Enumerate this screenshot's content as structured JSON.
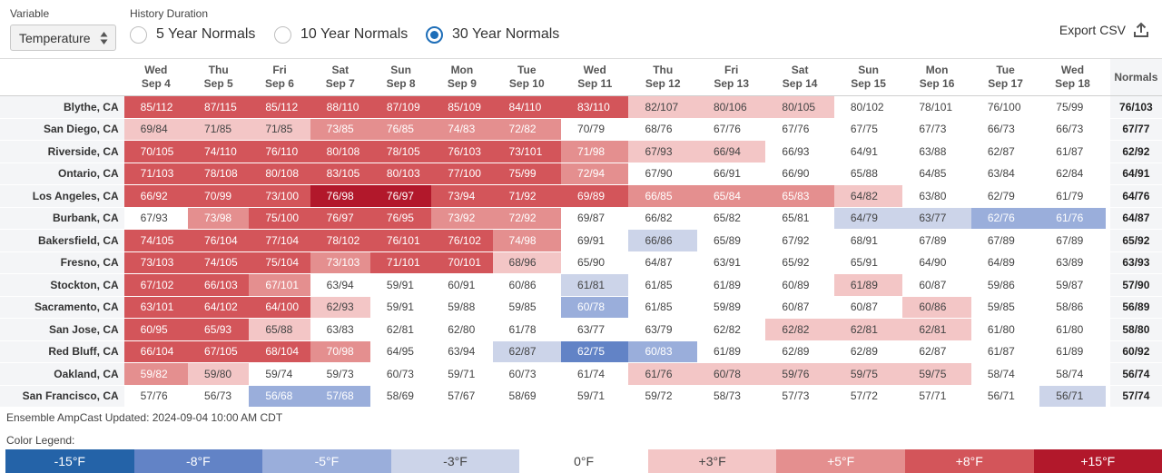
{
  "controls": {
    "variable_label": "Variable",
    "variable_value": "Temperature",
    "history_label": "History Duration",
    "options": [
      "5 Year Normals",
      "10 Year Normals",
      "30 Year Normals"
    ],
    "selected_option": "30 Year Normals",
    "export_label": "Export CSV"
  },
  "days": [
    {
      "dow": "Wed",
      "date": "Sep 4"
    },
    {
      "dow": "Thu",
      "date": "Sep 5"
    },
    {
      "dow": "Fri",
      "date": "Sep 6"
    },
    {
      "dow": "Sat",
      "date": "Sep 7"
    },
    {
      "dow": "Sun",
      "date": "Sep 8"
    },
    {
      "dow": "Mon",
      "date": "Sep 9"
    },
    {
      "dow": "Tue",
      "date": "Sep 10"
    },
    {
      "dow": "Wed",
      "date": "Sep 11"
    },
    {
      "dow": "Thu",
      "date": "Sep 12"
    },
    {
      "dow": "Fri",
      "date": "Sep 13"
    },
    {
      "dow": "Sat",
      "date": "Sep 14"
    },
    {
      "dow": "Sun",
      "date": "Sep 15"
    },
    {
      "dow": "Mon",
      "date": "Sep 16"
    },
    {
      "dow": "Tue",
      "date": "Sep 17"
    },
    {
      "dow": "Wed",
      "date": "Sep 18"
    }
  ],
  "normals_header": "Normals",
  "rows": [
    {
      "city": "Blythe, CA",
      "normals": "76/103",
      "values": [
        "85/112",
        "87/115",
        "85/112",
        "88/110",
        "87/109",
        "85/109",
        "84/110",
        "83/110",
        "82/107",
        "80/106",
        "80/105",
        "80/102",
        "78/101",
        "76/100",
        "75/99"
      ],
      "anomalies": [
        8,
        8,
        8,
        8,
        8,
        8,
        8,
        8,
        3,
        3,
        3,
        0,
        0,
        0,
        0
      ]
    },
    {
      "city": "San Diego, CA",
      "normals": "67/77",
      "values": [
        "69/84",
        "71/85",
        "71/85",
        "73/85",
        "76/85",
        "74/83",
        "72/82",
        "70/79",
        "68/76",
        "67/76",
        "67/76",
        "67/75",
        "67/73",
        "66/73",
        "66/73"
      ],
      "anomalies": [
        3,
        3,
        3,
        5,
        5,
        5,
        5,
        0,
        0,
        0,
        0,
        0,
        0,
        0,
        0
      ]
    },
    {
      "city": "Riverside, CA",
      "normals": "62/92",
      "values": [
        "70/105",
        "74/110",
        "76/110",
        "80/108",
        "78/105",
        "76/103",
        "73/101",
        "71/98",
        "67/93",
        "66/94",
        "66/93",
        "64/91",
        "63/88",
        "62/87",
        "61/87"
      ],
      "anomalies": [
        8,
        8,
        8,
        8,
        8,
        8,
        8,
        5,
        3,
        3,
        0,
        0,
        0,
        0,
        0
      ]
    },
    {
      "city": "Ontario, CA",
      "normals": "64/91",
      "values": [
        "71/103",
        "78/108",
        "80/108",
        "83/105",
        "80/103",
        "77/100",
        "75/99",
        "72/94",
        "67/90",
        "66/91",
        "66/90",
        "65/88",
        "64/85",
        "63/84",
        "62/84"
      ],
      "anomalies": [
        8,
        8,
        8,
        8,
        8,
        8,
        8,
        5,
        0,
        0,
        0,
        0,
        0,
        0,
        0
      ]
    },
    {
      "city": "Los Angeles, CA",
      "normals": "64/76",
      "values": [
        "66/92",
        "70/99",
        "73/100",
        "76/98",
        "76/97",
        "73/94",
        "71/92",
        "69/89",
        "66/85",
        "65/84",
        "65/83",
        "64/82",
        "63/80",
        "62/79",
        "61/79"
      ],
      "anomalies": [
        8,
        8,
        8,
        15,
        15,
        8,
        8,
        8,
        5,
        5,
        5,
        3,
        0,
        0,
        0
      ]
    },
    {
      "city": "Burbank, CA",
      "normals": "64/87",
      "values": [
        "67/93",
        "73/98",
        "75/100",
        "76/97",
        "76/95",
        "73/92",
        "72/92",
        "69/87",
        "66/82",
        "65/82",
        "65/81",
        "64/79",
        "63/77",
        "62/76",
        "61/76"
      ],
      "anomalies": [
        0,
        5,
        8,
        8,
        8,
        5,
        5,
        0,
        0,
        0,
        0,
        -3,
        -3,
        -5,
        -5
      ]
    },
    {
      "city": "Bakersfield, CA",
      "normals": "65/92",
      "values": [
        "74/105",
        "76/104",
        "77/104",
        "78/102",
        "76/101",
        "76/102",
        "74/98",
        "69/91",
        "66/86",
        "65/89",
        "67/92",
        "68/91",
        "67/89",
        "67/89",
        "67/89"
      ],
      "anomalies": [
        8,
        8,
        8,
        8,
        8,
        8,
        5,
        0,
        -3,
        0,
        0,
        0,
        0,
        0,
        0
      ]
    },
    {
      "city": "Fresno, CA",
      "normals": "63/93",
      "values": [
        "73/103",
        "74/105",
        "75/104",
        "73/103",
        "71/101",
        "70/101",
        "68/96",
        "65/90",
        "64/87",
        "63/91",
        "65/92",
        "65/91",
        "64/90",
        "64/89",
        "63/89"
      ],
      "anomalies": [
        8,
        8,
        8,
        5,
        8,
        8,
        3,
        0,
        0,
        0,
        0,
        0,
        0,
        0,
        0
      ]
    },
    {
      "city": "Stockton, CA",
      "normals": "57/90",
      "values": [
        "67/102",
        "66/103",
        "67/101",
        "63/94",
        "59/91",
        "60/91",
        "60/86",
        "61/81",
        "61/85",
        "61/89",
        "60/89",
        "61/89",
        "60/87",
        "59/86",
        "59/87"
      ],
      "anomalies": [
        8,
        8,
        5,
        0,
        0,
        0,
        0,
        -3,
        0,
        0,
        0,
        3,
        0,
        0,
        0
      ]
    },
    {
      "city": "Sacramento, CA",
      "normals": "56/89",
      "values": [
        "63/101",
        "64/102",
        "64/100",
        "62/93",
        "59/91",
        "59/88",
        "59/85",
        "60/78",
        "61/85",
        "59/89",
        "60/87",
        "60/87",
        "60/86",
        "59/85",
        "58/86"
      ],
      "anomalies": [
        8,
        8,
        8,
        3,
        0,
        0,
        0,
        -5,
        0,
        0,
        0,
        0,
        3,
        0,
        0
      ]
    },
    {
      "city": "San Jose, CA",
      "normals": "58/80",
      "values": [
        "60/95",
        "65/93",
        "65/88",
        "63/83",
        "62/81",
        "62/80",
        "61/78",
        "63/77",
        "63/79",
        "62/82",
        "62/82",
        "62/81",
        "62/81",
        "61/80",
        "61/80"
      ],
      "anomalies": [
        8,
        8,
        3,
        0,
        0,
        0,
        0,
        0,
        0,
        0,
        3,
        3,
        3,
        0,
        0
      ]
    },
    {
      "city": "Red Bluff, CA",
      "normals": "60/92",
      "values": [
        "66/104",
        "67/105",
        "68/104",
        "70/98",
        "64/95",
        "63/94",
        "62/87",
        "62/75",
        "60/83",
        "61/89",
        "62/89",
        "62/89",
        "62/87",
        "61/87",
        "61/89"
      ],
      "anomalies": [
        8,
        8,
        8,
        5,
        0,
        0,
        -3,
        -8,
        -5,
        0,
        0,
        0,
        0,
        0,
        0
      ]
    },
    {
      "city": "Oakland, CA",
      "normals": "56/74",
      "values": [
        "59/82",
        "59/80",
        "59/74",
        "59/73",
        "60/73",
        "59/71",
        "60/73",
        "61/74",
        "61/76",
        "60/78",
        "59/76",
        "59/75",
        "59/75",
        "58/74",
        "58/74"
      ],
      "anomalies": [
        5,
        3,
        0,
        0,
        0,
        0,
        0,
        0,
        3,
        3,
        3,
        3,
        3,
        0,
        0
      ]
    },
    {
      "city": "San Francisco, CA",
      "normals": "57/74",
      "values": [
        "57/76",
        "56/73",
        "56/68",
        "57/68",
        "58/69",
        "57/67",
        "58/69",
        "59/71",
        "59/72",
        "58/73",
        "57/73",
        "57/72",
        "57/71",
        "56/71",
        "56/71"
      ],
      "anomalies": [
        0,
        0,
        -5,
        -5,
        0,
        0,
        0,
        0,
        0,
        0,
        0,
        0,
        0,
        0,
        -3
      ]
    }
  ],
  "updated_text": "Ensemble AmpCast Updated: 2024-09-04 10:00 AM CDT",
  "legend_title": "Color Legend:",
  "legend": [
    {
      "label": "-15°F",
      "key": -15,
      "color": "#2463a8"
    },
    {
      "label": "-8°F",
      "key": -8,
      "color": "#6283c6"
    },
    {
      "label": "-5°F",
      "key": -5,
      "color": "#9aaedb"
    },
    {
      "label": "-3°F",
      "key": -3,
      "color": "#ccd4e9"
    },
    {
      "label": "0°F",
      "key": 0,
      "color": "#ffffff"
    },
    {
      "label": "+3°F",
      "key": 3,
      "color": "#f3c6c6"
    },
    {
      "label": "+5°F",
      "key": 5,
      "color": "#e48f8f"
    },
    {
      "label": "+8°F",
      "key": 8,
      "color": "#d3555a"
    },
    {
      "label": "+15°F",
      "key": 15,
      "color": "#b2182b"
    }
  ]
}
